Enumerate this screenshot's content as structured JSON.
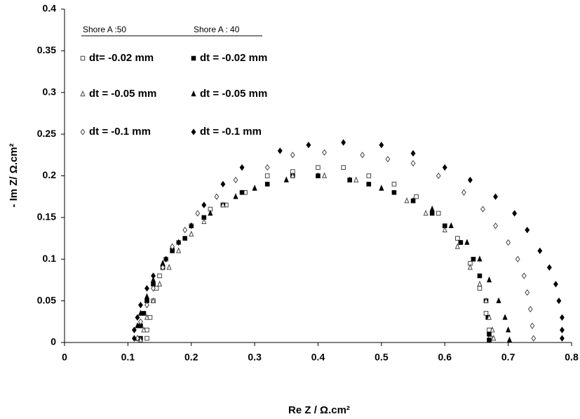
{
  "chart_data": {
    "type": "scatter",
    "xlabel": "Re Z / Ω.cm²",
    "ylabel": "- Im Z/ Ω.cm²",
    "xlim": [
      0,
      0.8
    ],
    "xticks": [
      0,
      0.1,
      0.2,
      0.3,
      0.4,
      0.5,
      0.6,
      0.7,
      0.8
    ],
    "ylim": [
      0,
      0.4
    ],
    "yticks": [
      0,
      0.05,
      0.1,
      0.15,
      0.2,
      0.25,
      0.3,
      0.35,
      0.4
    ],
    "legend_groups": [
      "Shore A :50",
      "Shore A : 40"
    ],
    "series": [
      {
        "name": "dt= -0.02 mm",
        "marker": "square",
        "filled": false,
        "color": "#444",
        "x": [
          0.13,
          0.13,
          0.135,
          0.14,
          0.145,
          0.15,
          0.16,
          0.18,
          0.2,
          0.23,
          0.255,
          0.285,
          0.32,
          0.36,
          0.4,
          0.44,
          0.48,
          0.52,
          0.555,
          0.59,
          0.62,
          0.64,
          0.655,
          0.665,
          0.67,
          0.672
        ],
        "values": [
          0.005,
          0.015,
          0.03,
          0.05,
          0.065,
          0.08,
          0.1,
          0.12,
          0.14,
          0.16,
          0.165,
          0.18,
          0.2,
          0.205,
          0.21,
          0.21,
          0.2,
          0.19,
          0.175,
          0.155,
          0.125,
          0.095,
          0.065,
          0.035,
          0.015,
          0.005
        ]
      },
      {
        "name": "dt = -0.02 mm",
        "marker": "square",
        "filled": true,
        "color": "#000",
        "x": [
          0.12,
          0.12,
          0.125,
          0.13,
          0.14,
          0.155,
          0.17,
          0.19,
          0.22,
          0.25,
          0.28,
          0.32,
          0.36,
          0.4,
          0.45,
          0.48,
          0.52,
          0.55,
          0.58,
          0.6,
          0.625,
          0.645,
          0.655,
          0.665,
          0.668,
          0.67,
          0.67
        ],
        "values": [
          0.005,
          0.02,
          0.035,
          0.05,
          0.07,
          0.09,
          0.11,
          0.125,
          0.15,
          0.165,
          0.18,
          0.19,
          0.2,
          0.2,
          0.195,
          0.19,
          0.18,
          0.17,
          0.155,
          0.14,
          0.12,
          0.1,
          0.08,
          0.05,
          0.03,
          0.01,
          0.003
        ]
      },
      {
        "name": "dt = -0.05 mm",
        "marker": "triangle",
        "filled": false,
        "color": "#444",
        "x": [
          0.12,
          0.125,
          0.13,
          0.14,
          0.15,
          0.165,
          0.18,
          0.2,
          0.22,
          0.25,
          0.3,
          0.36,
          0.41,
          0.46,
          0.5,
          0.54,
          0.57,
          0.6,
          0.62,
          0.64,
          0.655,
          0.665,
          0.67,
          0.675,
          0.677
        ],
        "values": [
          0.003,
          0.015,
          0.03,
          0.05,
          0.07,
          0.09,
          0.11,
          0.13,
          0.145,
          0.165,
          0.185,
          0.2,
          0.2,
          0.195,
          0.185,
          0.17,
          0.155,
          0.135,
          0.115,
          0.09,
          0.07,
          0.05,
          0.03,
          0.015,
          0.005
        ]
      },
      {
        "name": "dt = -0.05 mm",
        "marker": "triangle",
        "filled": true,
        "color": "#000",
        "x": [
          0.115,
          0.115,
          0.12,
          0.13,
          0.14,
          0.155,
          0.17,
          0.2,
          0.23,
          0.27,
          0.3,
          0.35,
          0.4,
          0.45,
          0.5,
          0.55,
          0.58,
          0.61,
          0.635,
          0.655,
          0.67,
          0.685,
          0.695,
          0.7,
          0.702
        ],
        "values": [
          0.005,
          0.02,
          0.035,
          0.055,
          0.075,
          0.095,
          0.115,
          0.14,
          0.155,
          0.175,
          0.185,
          0.195,
          0.2,
          0.195,
          0.185,
          0.17,
          0.16,
          0.14,
          0.12,
          0.1,
          0.075,
          0.05,
          0.03,
          0.015,
          0.003
        ]
      },
      {
        "name": "dt = -0.1 mm",
        "marker": "diamond",
        "filled": false,
        "color": "#444",
        "x": [
          0.115,
          0.12,
          0.13,
          0.14,
          0.155,
          0.17,
          0.19,
          0.21,
          0.24,
          0.27,
          0.32,
          0.36,
          0.41,
          0.47,
          0.51,
          0.55,
          0.59,
          0.63,
          0.66,
          0.68,
          0.7,
          0.715,
          0.725,
          0.73,
          0.735,
          0.738,
          0.74
        ],
        "values": [
          0.005,
          0.025,
          0.045,
          0.065,
          0.09,
          0.115,
          0.135,
          0.155,
          0.175,
          0.195,
          0.21,
          0.225,
          0.228,
          0.225,
          0.22,
          0.215,
          0.2,
          0.18,
          0.16,
          0.14,
          0.12,
          0.1,
          0.08,
          0.06,
          0.04,
          0.02,
          0.005
        ]
      },
      {
        "name": "dt = -0.1 mm",
        "marker": "diamond",
        "filled": true,
        "color": "#000",
        "x": [
          0.11,
          0.11,
          0.115,
          0.12,
          0.13,
          0.14,
          0.16,
          0.18,
          0.2,
          0.22,
          0.25,
          0.28,
          0.34,
          0.385,
          0.44,
          0.5,
          0.55,
          0.6,
          0.64,
          0.68,
          0.71,
          0.73,
          0.75,
          0.765,
          0.775,
          0.78,
          0.785,
          0.785,
          0.785
        ],
        "values": [
          0.005,
          0.015,
          0.03,
          0.045,
          0.065,
          0.08,
          0.1,
          0.12,
          0.14,
          0.165,
          0.19,
          0.21,
          0.23,
          0.237,
          0.24,
          0.237,
          0.227,
          0.21,
          0.195,
          0.175,
          0.155,
          0.135,
          0.11,
          0.09,
          0.07,
          0.05,
          0.03,
          0.015,
          0.005
        ]
      }
    ]
  }
}
